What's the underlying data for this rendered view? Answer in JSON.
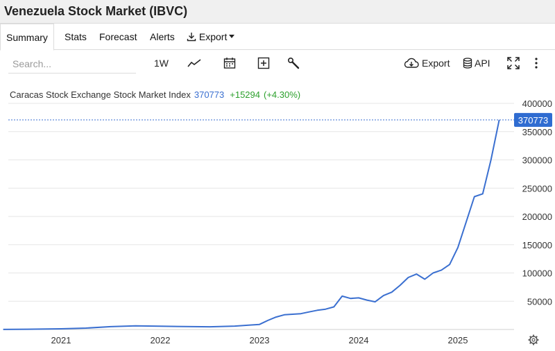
{
  "header": {
    "title": "Venezuela Stock Market (IBVC)"
  },
  "tabs": [
    {
      "label": "Summary",
      "active": true
    },
    {
      "label": "Stats"
    },
    {
      "label": "Forecast"
    },
    {
      "label": "Alerts"
    },
    {
      "label": "Export",
      "icon": "download-icon",
      "has_dropdown": true
    }
  ],
  "toolbar": {
    "search_placeholder": "Search...",
    "range_label": "1W",
    "export_label": "Export",
    "api_label": "API",
    "icons": [
      "line-chart-icon",
      "calendar-icon",
      "plus-box-icon",
      "wrench-icon",
      "cloud-download-icon",
      "database-icon",
      "fullscreen-icon",
      "more-vertical-icon"
    ]
  },
  "colors": {
    "line": "#3a6fd0",
    "positive": "#2ca02c",
    "badge_bg": "#2f6cd1",
    "grid": "#e6e6e6"
  },
  "chart_data": {
    "type": "line",
    "series": [
      {
        "name": "Caracas Stock Exchange Stock Market Index",
        "last_value": "370773",
        "change": "+15294",
        "change_pct": "(+4.30%)",
        "points": [
          [
            "2020-06",
            100
          ],
          [
            "2020-09",
            500
          ],
          [
            "2021-01",
            1200
          ],
          [
            "2021-04",
            2500
          ],
          [
            "2021-07",
            5000
          ],
          [
            "2021-10",
            6500
          ],
          [
            "2022-01",
            5800
          ],
          [
            "2022-04",
            5200
          ],
          [
            "2022-07",
            4800
          ],
          [
            "2022-10",
            6000
          ],
          [
            "2022-12",
            8000
          ],
          [
            "2023-01",
            9000
          ],
          [
            "2023-02",
            16000
          ],
          [
            "2023-03",
            22000
          ],
          [
            "2023-04",
            26000
          ],
          [
            "2023-05",
            27000
          ],
          [
            "2023-06",
            28000
          ],
          [
            "2023-07",
            31000
          ],
          [
            "2023-08",
            34000
          ],
          [
            "2023-09",
            36000
          ],
          [
            "2023-10",
            40000
          ],
          [
            "2023-11",
            59000
          ],
          [
            "2023-12",
            55000
          ],
          [
            "2024-01",
            56000
          ],
          [
            "2024-02",
            52000
          ],
          [
            "2024-03",
            49000
          ],
          [
            "2024-04",
            60000
          ],
          [
            "2024-05",
            66000
          ],
          [
            "2024-06",
            78000
          ],
          [
            "2024-07",
            92000
          ],
          [
            "2024-08",
            98000
          ],
          [
            "2024-09",
            89000
          ],
          [
            "2024-10",
            100000
          ],
          [
            "2024-11",
            105000
          ],
          [
            "2024-12",
            115000
          ],
          [
            "2025-01",
            145000
          ],
          [
            "2025-02",
            190000
          ],
          [
            "2025-03",
            235000
          ],
          [
            "2025-04",
            240000
          ],
          [
            "2025-05",
            300000
          ],
          [
            "2025-06",
            370773
          ]
        ]
      }
    ],
    "x_ticks": [
      "2021",
      "2022",
      "2023",
      "2024",
      "2025"
    ],
    "y_ticks": [
      "50000",
      "100000",
      "150000",
      "200000",
      "250000",
      "300000",
      "350000",
      "400000"
    ],
    "ylim": [
      0,
      400000
    ],
    "grid": true,
    "legend": "top-left",
    "xlabel": "",
    "ylabel": ""
  }
}
